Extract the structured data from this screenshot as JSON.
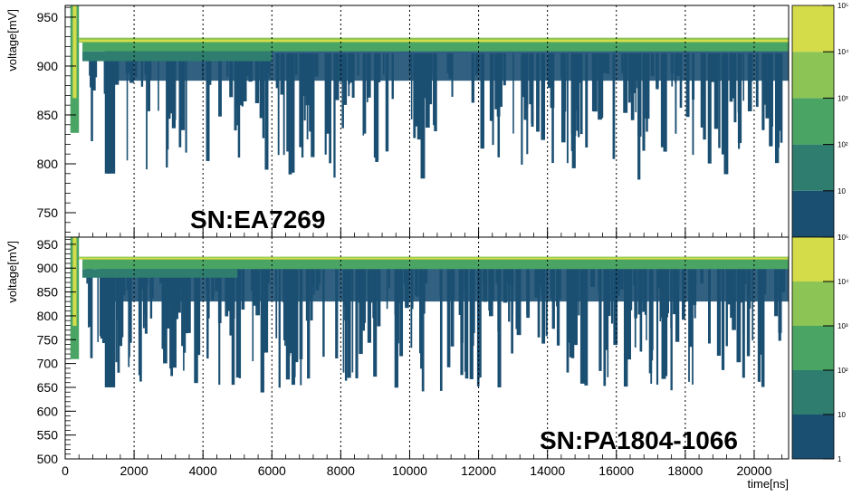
{
  "chart_data": [
    {
      "type": "heatmap",
      "title": "",
      "annotation": "SN:EA7269",
      "xlabel": "",
      "ylabel": "voltage[mV]",
      "xlim": [
        0,
        21000
      ],
      "ylim": [
        725,
        962
      ],
      "yticks": [
        750,
        800,
        850,
        900,
        950
      ],
      "xticks": [
        0,
        2000,
        4000,
        6000,
        8000,
        10000,
        12000,
        14000,
        16000,
        18000,
        20000
      ],
      "grid": true,
      "baseline_mV": 925,
      "colorbar": {
        "labels": [
          "1",
          "10",
          "10²",
          "10³",
          "10⁴",
          "10⁵"
        ],
        "colors": [
          "#1b4f72",
          "#2e7d6e",
          "#4aa564",
          "#8cc455",
          "#d4dc4a"
        ]
      }
    },
    {
      "type": "heatmap",
      "title": "",
      "annotation": "SN:PA1804-1066",
      "xlabel": "time[ns]",
      "ylabel": "voltage[mV]",
      "xlim": [
        0,
        21000
      ],
      "ylim": [
        500,
        965
      ],
      "yticks": [
        500,
        550,
        600,
        650,
        700,
        750,
        800,
        850,
        900,
        950
      ],
      "xticks": [
        0,
        2000,
        4000,
        6000,
        8000,
        10000,
        12000,
        14000,
        16000,
        18000,
        20000
      ],
      "xticklabels": [
        "0",
        "2000",
        "4000",
        "6000",
        "8000",
        "10000",
        "12000",
        "14000",
        "16000",
        "18000",
        "20000"
      ],
      "grid": true,
      "baseline_mV": 920,
      "colorbar": {
        "labels": [
          "1",
          "10",
          "10²",
          "10³",
          "10⁴",
          "10⁵"
        ],
        "colors": [
          "#1b4f72",
          "#2e7d6e",
          "#4aa564",
          "#8cc455",
          "#d4dc4a"
        ]
      }
    }
  ]
}
